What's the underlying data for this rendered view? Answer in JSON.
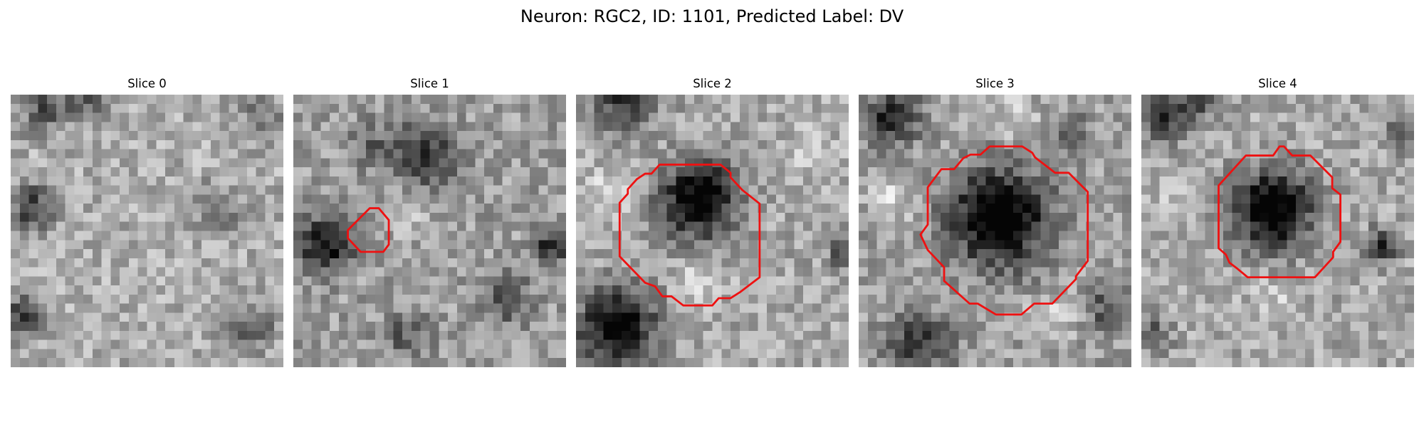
{
  "figure": {
    "title": "Neuron: RGC2, ID: 1101, Predicted Label: DV"
  },
  "colors": {
    "contour": "#ee1111",
    "background": "#ffffff"
  },
  "slices": [
    {
      "title": "Slice 0",
      "has_contour": false
    },
    {
      "title": "Slice 1",
      "has_contour": true
    },
    {
      "title": "Slice 2",
      "has_contour": true
    },
    {
      "title": "Slice 3",
      "has_contour": true
    },
    {
      "title": "Slice 4",
      "has_contour": true
    }
  ]
}
